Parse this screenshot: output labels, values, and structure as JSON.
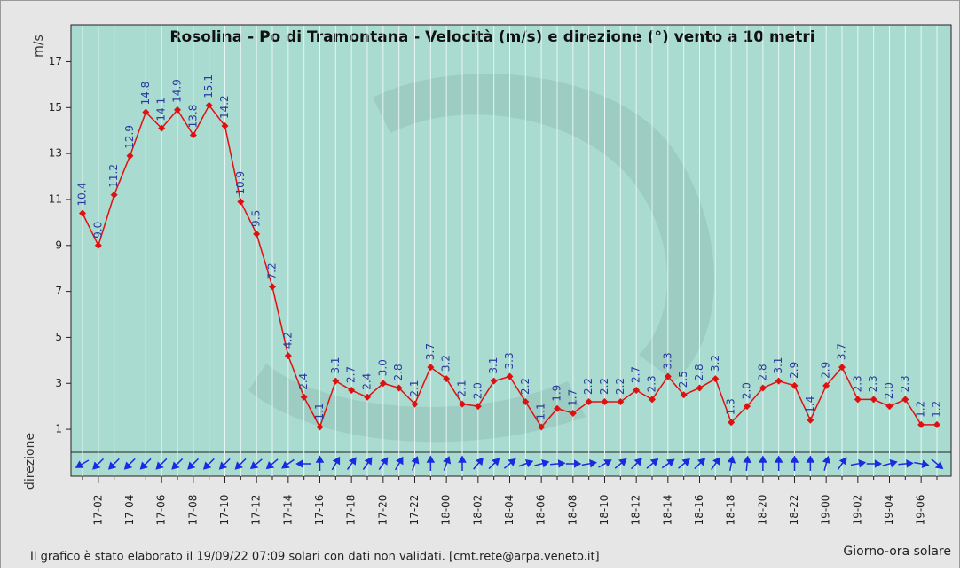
{
  "chart_data": {
    "type": "line",
    "title": "Rosolina - Po di Tramontana - Velocità (m/s) e direzione (°) vento a 10 metri",
    "y_label": "m/s",
    "strip_label": "direzione",
    "x_label": "Giorno-ora solare",
    "footer": "Il grafico è stato elaborato il 19/09/22 07:09 solari con dati non validati. [cmt.rete@arpa.veneto.it]",
    "categories": [
      null,
      "17-02",
      null,
      "17-04",
      null,
      "17-06",
      null,
      "17-08",
      null,
      "17-10",
      null,
      "17-12",
      null,
      "17-14",
      null,
      "17-16",
      null,
      "17-18",
      null,
      "17-20",
      null,
      "17-22",
      null,
      "18-00",
      null,
      "18-02",
      null,
      "18-04",
      null,
      "18-06",
      null,
      "18-08",
      null,
      "18-10",
      null,
      "18-12",
      null,
      "18-14",
      null,
      "18-16",
      null,
      "18-18",
      null,
      "18-20",
      null,
      "18-22",
      null,
      "19-00",
      null,
      "19-02",
      null,
      "19-04",
      null,
      "19-06",
      null
    ],
    "values": [
      10.4,
      9.0,
      11.2,
      12.9,
      14.8,
      14.1,
      14.9,
      13.8,
      15.1,
      14.2,
      10.9,
      9.5,
      7.2,
      4.2,
      2.4,
      1.1,
      3.1,
      2.7,
      2.4,
      3.0,
      2.8,
      2.1,
      3.7,
      3.2,
      2.1,
      2.0,
      3.1,
      3.3,
      2.2,
      1.1,
      1.9,
      1.7,
      2.2,
      2.2,
      2.2,
      2.7,
      2.3,
      3.3,
      2.5,
      2.8,
      3.2,
      1.3,
      2.0,
      2.8,
      3.1,
      2.9,
      1.4,
      2.9,
      3.7,
      2.3,
      2.3,
      2.0,
      2.3,
      1.2,
      1.2
    ],
    "value_labels": [
      "10.4",
      "9.0",
      "11.2",
      "12.9",
      "14.8",
      "14.1",
      "14.9",
      "13.8",
      "15.1",
      "14.2",
      "10.9",
      "9.5",
      "7.2",
      "4.2",
      "2.4",
      "1.1",
      "3.1",
      "2.7",
      "2.4",
      "3.0",
      "2.8",
      "2.1",
      "3.7",
      "3.2",
      "2.1",
      "2.0",
      "3.1",
      "3.3",
      "2.2",
      "1.1",
      "1.9",
      "1.7",
      "2.2",
      "2.2",
      "2.2",
      "2.7",
      "2.3",
      "3.3",
      "2.5",
      "2.8",
      "3.2",
      "1.3",
      "2.0",
      "2.8",
      "3.1",
      "2.9",
      "1.4",
      "2.9",
      "3.7",
      "2.3",
      "2.3",
      "2.0",
      "2.3",
      "1.2",
      "1.2"
    ],
    "directions": [
      60,
      45,
      45,
      45,
      45,
      45,
      45,
      45,
      45,
      45,
      45,
      50,
      50,
      55,
      90,
      180,
      210,
      215,
      215,
      215,
      210,
      200,
      180,
      200,
      180,
      220,
      225,
      230,
      250,
      255,
      265,
      270,
      260,
      240,
      230,
      225,
      230,
      235,
      230,
      225,
      215,
      190,
      185,
      180,
      180,
      180,
      180,
      195,
      215,
      260,
      270,
      255,
      265,
      280,
      310
    ],
    "color": "#e01010",
    "label_color": "#2a3aa0",
    "arrow_color": "#1a2adf",
    "ylim": [
      0,
      18.6
    ],
    "yticks": [
      1,
      3,
      5,
      7,
      9,
      11,
      13,
      15,
      17
    ],
    "grid": true
  }
}
